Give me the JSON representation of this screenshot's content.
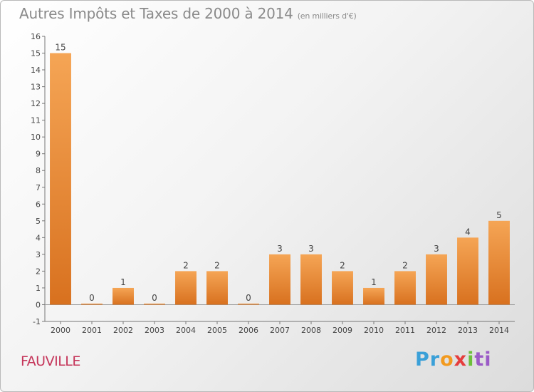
{
  "title": "Autres Impôts et Taxes de 2000 à 2014",
  "unit": "(en milliers d'€)",
  "commune": "FAUVILLE",
  "logo": {
    "p1": "Pr",
    "p2": "o",
    "p3": "x",
    "p4": "i",
    "p5": "ti"
  },
  "colors": {
    "bar": "#f0923a",
    "bar_dark": "#e0792a",
    "commune": "#c5355a",
    "title": "#8a8a8a"
  },
  "chart_data": {
    "type": "bar",
    "categories": [
      "2000",
      "2001",
      "2002",
      "2003",
      "2004",
      "2005",
      "2006",
      "2007",
      "2008",
      "2009",
      "2010",
      "2011",
      "2012",
      "2013",
      "2014"
    ],
    "values": [
      15,
      0,
      1,
      0,
      2,
      2,
      0,
      3,
      3,
      2,
      1,
      2,
      3,
      4,
      5
    ],
    "data_labels": [
      "15",
      "0",
      "1",
      "0",
      "2",
      "2",
      "0",
      "3",
      "3",
      "2",
      "1",
      "2",
      "3",
      "4",
      "5"
    ],
    "ylim": [
      -1,
      16
    ],
    "yticks": [
      -1,
      0,
      1,
      2,
      3,
      4,
      5,
      6,
      7,
      8,
      9,
      10,
      11,
      12,
      13,
      14,
      15,
      16
    ],
    "ytick_labels": [
      "-1",
      "0",
      "1",
      "2",
      "3",
      "4",
      "5",
      "6",
      "7",
      "8",
      "9",
      "10",
      "11",
      "12",
      "13",
      "14",
      "15",
      "16"
    ],
    "grid": false,
    "xlabel": "",
    "ylabel": ""
  }
}
